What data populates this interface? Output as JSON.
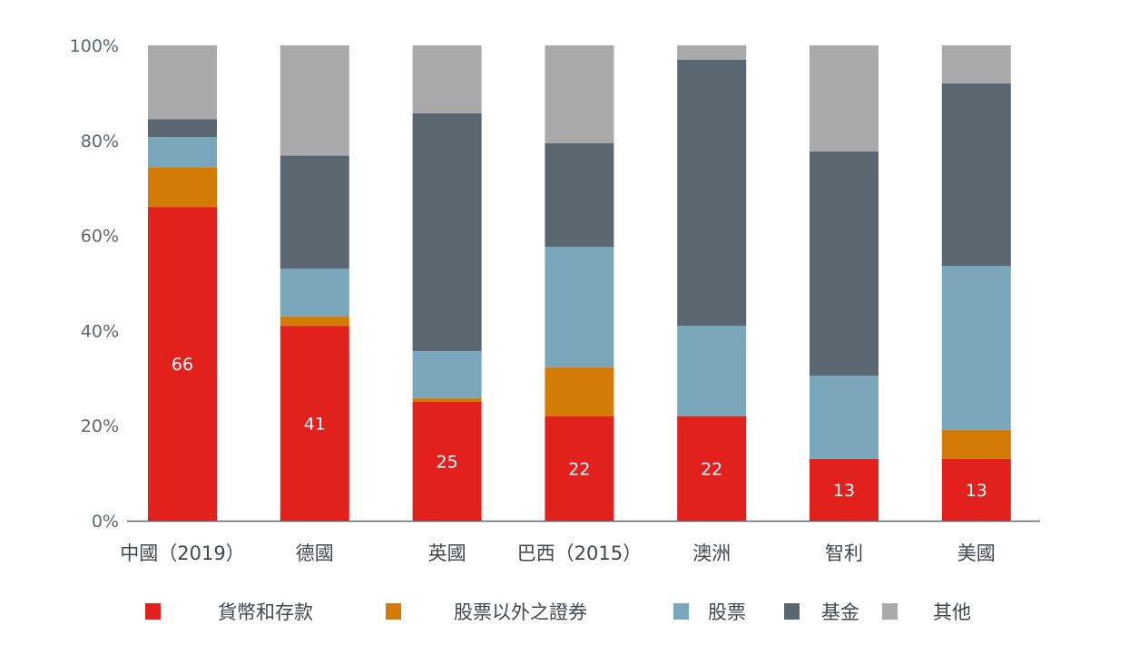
{
  "chart_data": {
    "type": "bar",
    "stacked": true,
    "title": "",
    "xlabel": "",
    "ylabel": "",
    "ylim": [
      0,
      100
    ],
    "yticks": [
      "0%",
      "20%",
      "40%",
      "60%",
      "80%",
      "100%"
    ],
    "grid": false,
    "legend_position": "bottom",
    "categories": [
      "中國（2019）",
      "德國",
      "英國",
      "巴西（2015）",
      "澳洲",
      "智利",
      "美國"
    ],
    "series": [
      {
        "name": "貨幣和存款",
        "color": "#e2201c",
        "values": [
          66,
          41,
          25,
          22,
          22,
          13,
          13
        ]
      },
      {
        "name": "股票以外之證券",
        "color": "#d47a06",
        "values": [
          8.4,
          2.0,
          0.8,
          10.3,
          0,
          0,
          6.1
        ]
      },
      {
        "name": "股票",
        "color": "#7aa6bb",
        "values": [
          6.3,
          10.0,
          9.9,
          25.3,
          19.0,
          17.5,
          34.5
        ]
      },
      {
        "name": "基金",
        "color": "#5a6770",
        "values": [
          3.8,
          23.8,
          50.0,
          21.8,
          56.0,
          47.2,
          38.4
        ]
      },
      {
        "name": "其他",
        "color": "#a8a9ab",
        "values": [
          15.5,
          23.2,
          14.3,
          20.6,
          3.0,
          22.3,
          8.0
        ]
      }
    ],
    "data_labels": [
      "66",
      "41",
      "25",
      "22",
      "22",
      "13",
      "13"
    ]
  }
}
